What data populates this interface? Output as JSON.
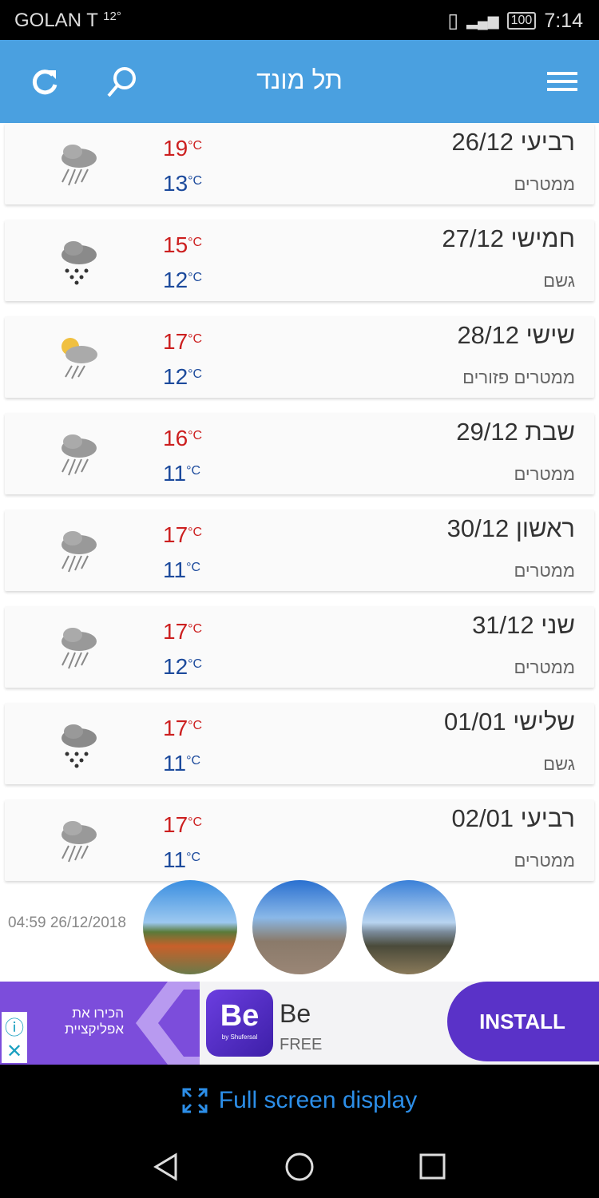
{
  "status_bar": {
    "carrier": "GOLAN T",
    "temp": "12°",
    "battery": "100",
    "time": "7:14"
  },
  "app_bar": {
    "title": "תל מונד",
    "icons": [
      "refresh-icon",
      "search-icon",
      "menu-icon"
    ]
  },
  "forecast": [
    {
      "day": "רביעי 26/12",
      "desc": "ממטרים",
      "high": "19",
      "low": "13",
      "icon": "showers"
    },
    {
      "day": "חמישי 27/12",
      "desc": "גשם",
      "high": "15",
      "low": "12",
      "icon": "rain"
    },
    {
      "day": "שישי 28/12",
      "desc": "ממטרים פזורים",
      "high": "17",
      "low": "12",
      "icon": "scattered-showers"
    },
    {
      "day": "שבת 29/12",
      "desc": "ממטרים",
      "high": "16",
      "low": "11",
      "icon": "showers"
    },
    {
      "day": "ראשון 30/12",
      "desc": "ממטרים",
      "high": "17",
      "low": "11",
      "icon": "showers"
    },
    {
      "day": "שני 31/12",
      "desc": "ממטרים",
      "high": "17",
      "low": "12",
      "icon": "showers"
    },
    {
      "day": "שלישי 01/01",
      "desc": "גשם",
      "high": "17",
      "low": "11",
      "icon": "rain"
    },
    {
      "day": "רביעי 02/01",
      "desc": "ממטרים",
      "high": "17",
      "low": "11",
      "icon": "showers"
    }
  ],
  "unit": "°C",
  "updated": "04:59 26/12/2018",
  "ad": {
    "promo": "הכירו את אפליקציית",
    "app_name": "Be",
    "logo_text": "Be",
    "logo_sub": "by Shufersal",
    "price": "FREE",
    "install": "INSTALL"
  },
  "fullscreen": "Full screen display",
  "colors": {
    "appbar": "#4aa0e0",
    "high": "#cc1f1f",
    "low": "#1c4a9c",
    "ad": "#7c4ddb"
  }
}
